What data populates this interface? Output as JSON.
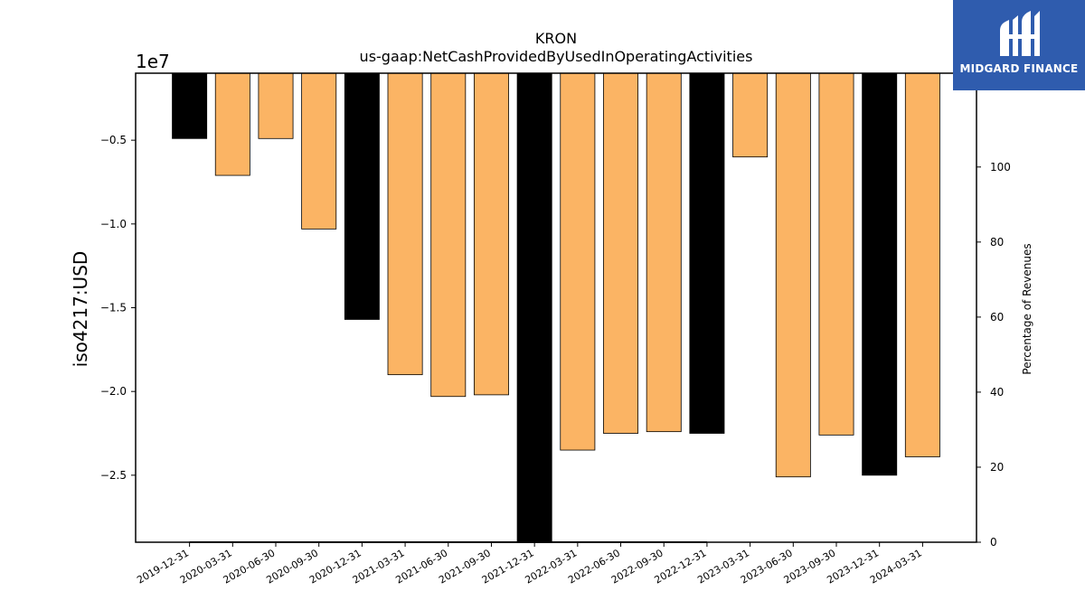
{
  "chart_data": {
    "type": "bar",
    "title": "KRON",
    "subtitle": "us-gaap:NetCashProvidedByUsedInOperatingActivities",
    "ylabel": "iso4217:USD",
    "y_offset_label": "1e7",
    "y2label": "Percentage of Revenues",
    "categories": [
      "2019-12-31",
      "2020-03-31",
      "2020-06-30",
      "2020-09-30",
      "2020-12-31",
      "2021-03-31",
      "2021-06-30",
      "2021-09-30",
      "2021-12-31",
      "2022-03-31",
      "2022-06-30",
      "2022-09-30",
      "2022-12-31",
      "2023-03-31",
      "2023-06-30",
      "2023-09-30",
      "2023-12-31",
      "2024-03-31"
    ],
    "values": [
      -4900000,
      -7100000,
      -4900000,
      -10300000,
      -15700000,
      -19000000,
      -20300000,
      -20200000,
      -29000000,
      -23500000,
      -22500000,
      -22400000,
      -22500000,
      -6000000,
      -25100000,
      -22600000,
      -25000000,
      -23900000
    ],
    "bar_kind": [
      "annual",
      "quarterly",
      "quarterly",
      "quarterly",
      "annual",
      "quarterly",
      "quarterly",
      "quarterly",
      "annual",
      "quarterly",
      "quarterly",
      "quarterly",
      "annual",
      "quarterly",
      "quarterly",
      "quarterly",
      "annual",
      "quarterly"
    ],
    "colors": {
      "annual": "#000000",
      "quarterly": "#fbb464"
    },
    "ylim": [
      -29000000,
      -1000000
    ],
    "yticks": [
      -5000000,
      -10000000,
      -15000000,
      -20000000,
      -25000000
    ],
    "ytick_labels": [
      "−0.5",
      "−1.0",
      "−1.5",
      "−2.0",
      "−2.5"
    ],
    "y2lim": [
      0,
      125
    ],
    "y2ticks": [
      0,
      20,
      40,
      60,
      80,
      100
    ],
    "y2tick_labels": [
      "0",
      "20",
      "40",
      "60",
      "80",
      "100"
    ],
    "percentage_line": {
      "from_index": 0,
      "to_index": 12,
      "value": 0
    },
    "grid": false,
    "legend": "none"
  },
  "logo": {
    "text": "MIDGARD FINANCE"
  }
}
